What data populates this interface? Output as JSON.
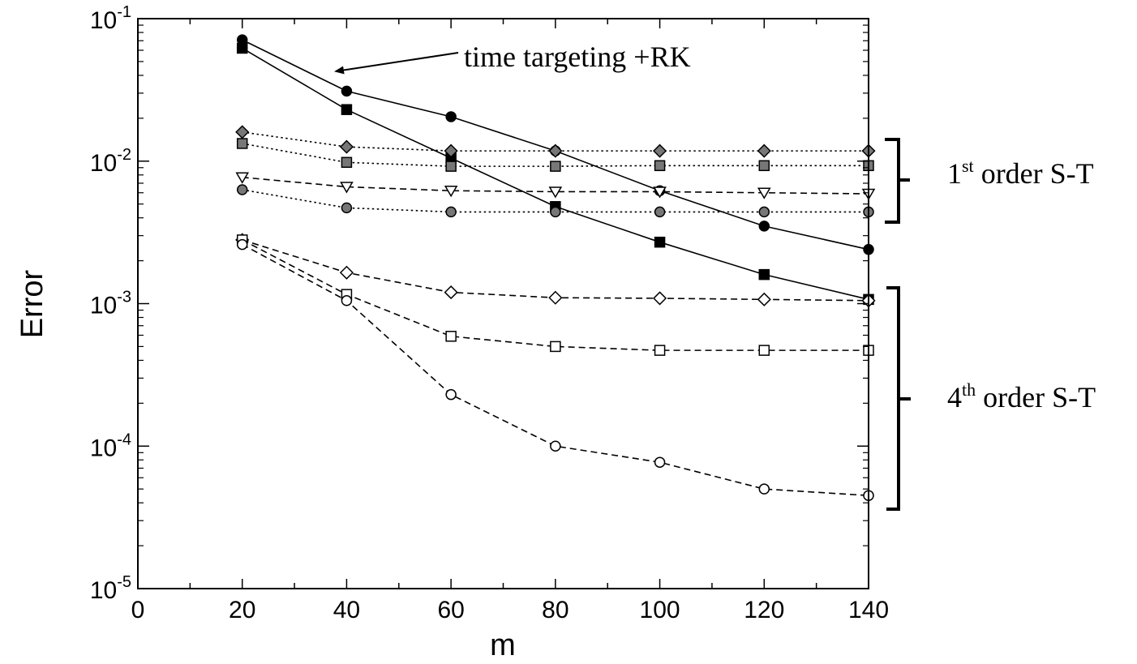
{
  "chart_data": {
    "type": "line",
    "title": "",
    "xlabel": "m",
    "ylabel": "Error",
    "x_scale": "linear",
    "y_scale": "log",
    "xlim": [
      0,
      140
    ],
    "ylim": [
      1e-05,
      0.1
    ],
    "grid": false,
    "x_ticks": [
      0,
      20,
      40,
      60,
      80,
      100,
      120,
      140
    ],
    "x_tick_labels": [
      "0",
      "20",
      "40",
      "60",
      "80",
      "100",
      "120",
      "140"
    ],
    "y_ticks": [
      1e-05,
      0.0001,
      0.001,
      0.01,
      0.1
    ],
    "y_tick_labels": [
      {
        "base": "10",
        "exp": "-5"
      },
      {
        "base": "10",
        "exp": "-4"
      },
      {
        "base": "10",
        "exp": "-3"
      },
      {
        "base": "10",
        "exp": "-2"
      },
      {
        "base": "10",
        "exp": "-1"
      }
    ],
    "x": [
      20,
      40,
      60,
      80,
      100,
      120,
      140
    ],
    "series": [
      {
        "group": "time targeting +RK",
        "marker": "circle",
        "fill": "#000000",
        "line": "solid",
        "color": "#000000",
        "values": [
          0.071,
          0.031,
          0.0205,
          0.0118,
          0.0062,
          0.0035,
          0.0024
        ]
      },
      {
        "group": "time targeting +RK",
        "marker": "square",
        "fill": "#000000",
        "line": "solid",
        "color": "#000000",
        "values": [
          0.062,
          0.023,
          0.0105,
          0.0048,
          0.0027,
          0.0016,
          0.00107
        ]
      },
      {
        "group": "1st order S-T",
        "marker": "diamond",
        "fill": "#777777",
        "line": "dotted",
        "color": "#000000",
        "values": [
          0.016,
          0.0126,
          0.0118,
          0.0118,
          0.0118,
          0.0118,
          0.0118
        ]
      },
      {
        "group": "1st order S-T",
        "marker": "square",
        "fill": "#777777",
        "line": "dotted",
        "color": "#000000",
        "values": [
          0.0133,
          0.0098,
          0.0092,
          0.0092,
          0.0093,
          0.0093,
          0.0093
        ]
      },
      {
        "group": "1st order S-T",
        "marker": "triangle-down",
        "fill": "#ffffff",
        "line": "dashed",
        "color": "#000000",
        "values": [
          0.0077,
          0.0066,
          0.0062,
          0.0061,
          0.0061,
          0.006,
          0.0059
        ]
      },
      {
        "group": "1st order S-T",
        "marker": "circle",
        "fill": "#777777",
        "line": "dotted",
        "color": "#000000",
        "values": [
          0.0063,
          0.0047,
          0.0044,
          0.0044,
          0.0044,
          0.0044,
          0.0044
        ]
      },
      {
        "group": "4th order S-T",
        "marker": "diamond",
        "fill": "#ffffff",
        "line": "dashed",
        "color": "#000000",
        "values": [
          0.0028,
          0.00165,
          0.0012,
          0.0011,
          0.00109,
          0.00107,
          0.00105
        ]
      },
      {
        "group": "4th order S-T",
        "marker": "square",
        "fill": "#ffffff",
        "line": "dashed",
        "color": "#000000",
        "values": [
          0.0028,
          0.00116,
          0.00059,
          0.0005,
          0.00047,
          0.00047,
          0.00047
        ]
      },
      {
        "group": "4th order S-T",
        "marker": "circle",
        "fill": "#ffffff",
        "line": "dashed",
        "color": "#000000",
        "values": [
          0.0026,
          0.00105,
          0.00023,
          0.0001,
          7.7e-05,
          5e-05,
          4.5e-05
        ]
      }
    ],
    "annotations": [
      {
        "id": "time-targeting",
        "text": "time targeting +RK"
      },
      {
        "id": "first-order",
        "sup": "st",
        "lead": "1",
        "text": " order S-T"
      },
      {
        "id": "fourth-order",
        "sup": "th",
        "lead": "4",
        "text": " order S-T"
      }
    ]
  }
}
